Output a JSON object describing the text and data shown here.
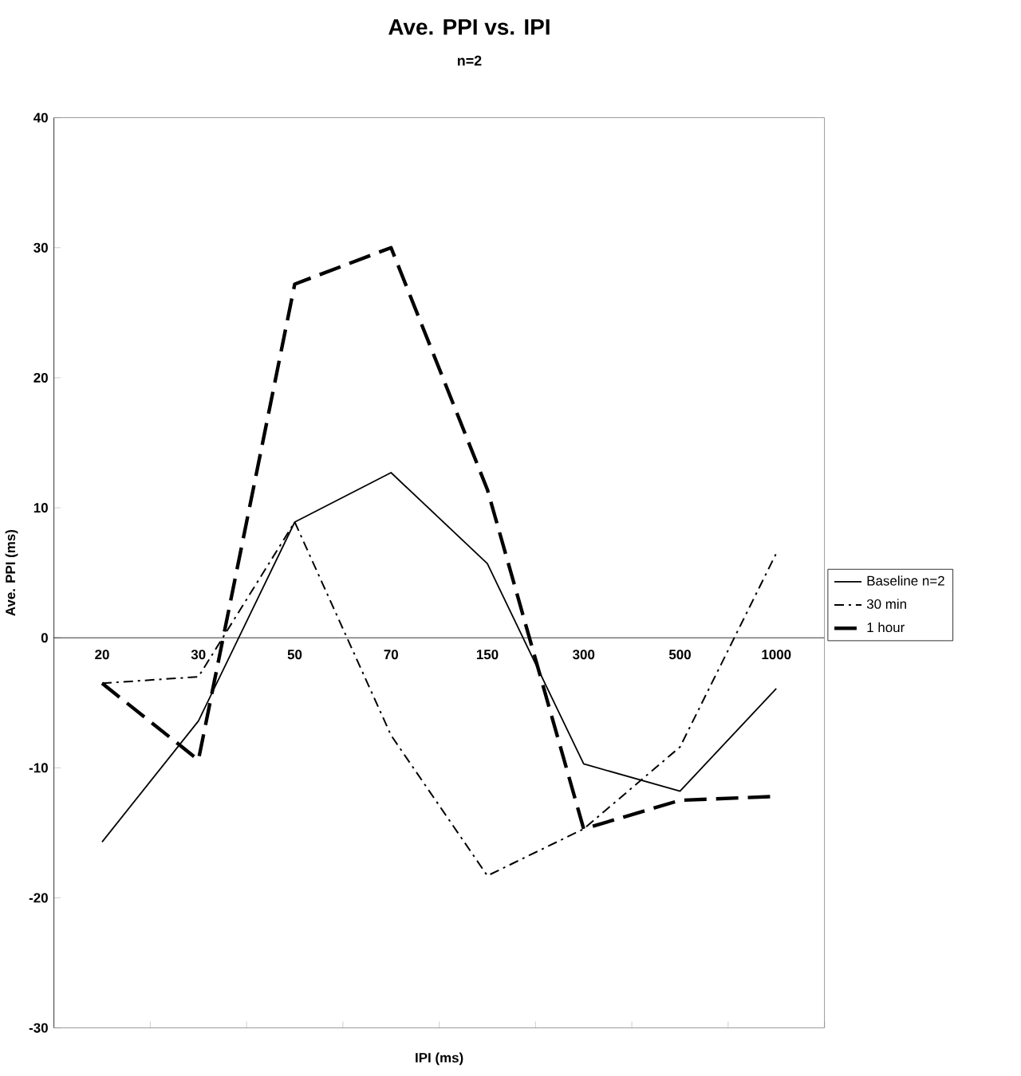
{
  "chart_data": {
    "type": "line",
    "title": "Ave. PPI vs. IPI",
    "subtitle": "n=2",
    "xlabel": "IPI (ms)",
    "ylabel": "Ave. PPI (ms)",
    "categories": [
      "20",
      "30",
      "50",
      "70",
      "150",
      "300",
      "500",
      "1000"
    ],
    "series": [
      {
        "name": "Baseline n=2",
        "color": "#000000",
        "line_style": "solid",
        "values": [
          -15.7,
          -6.4,
          8.9,
          12.7,
          5.7,
          -9.7,
          -11.8,
          -3.9
        ]
      },
      {
        "name": "30 min",
        "color": "#000000",
        "line_style": "dashdot",
        "values": [
          -3.5,
          -3.0,
          8.9,
          -7.5,
          -18.3,
          -14.7,
          -8.4,
          6.5
        ]
      },
      {
        "name": "1 hour",
        "color": "#000000",
        "line_style": "dashed",
        "values": [
          -3.5,
          -9.4,
          27.2,
          30.0,
          11.4,
          -14.7,
          -12.5,
          -12.2
        ]
      }
    ],
    "ylim": [
      -30,
      40
    ],
    "yticks": [
      -30,
      -20,
      -10,
      0,
      10,
      20,
      30,
      40
    ],
    "grid": false,
    "legend": "right",
    "marker": "none"
  }
}
